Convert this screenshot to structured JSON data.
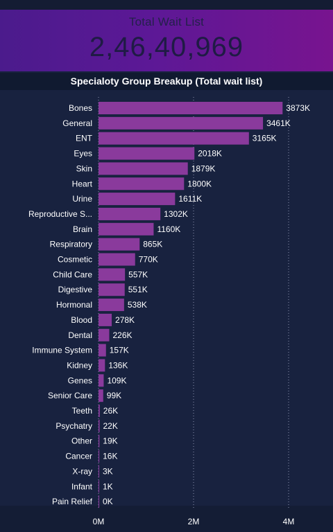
{
  "kpi": {
    "title": "Total Wait List",
    "value": "2,46,40,969"
  },
  "chart_data": {
    "type": "bar",
    "orientation": "horizontal",
    "title": "Specialoty Group Breakup (Total wait list)",
    "categories": [
      "Bones",
      "General",
      "ENT",
      "Eyes",
      "Skin",
      "Heart",
      "Urine",
      "Reproductive S...",
      "Brain",
      "Respiratory",
      "Cosmetic",
      "Child Care",
      "Digestive",
      "Hormonal",
      "Blood",
      "Dental",
      "Immune System",
      "Kidney",
      "Genes",
      "Senior Care",
      "Teeth",
      "Psychatry",
      "Other",
      "Cancer",
      "X-ray",
      "Infant",
      "Pain Relief"
    ],
    "values": [
      3873000,
      3461000,
      3165000,
      2018000,
      1879000,
      1800000,
      1611000,
      1302000,
      1160000,
      865000,
      770000,
      557000,
      551000,
      538000,
      278000,
      226000,
      157000,
      136000,
      109000,
      99000,
      26000,
      22000,
      19000,
      16000,
      3000,
      1000,
      0
    ],
    "value_labels": [
      "3873K",
      "3461K",
      "3165K",
      "2018K",
      "1879K",
      "1800K",
      "1611K",
      "1302K",
      "1160K",
      "865K",
      "770K",
      "557K",
      "551K",
      "538K",
      "278K",
      "226K",
      "157K",
      "136K",
      "109K",
      "99K",
      "26K",
      "22K",
      "19K",
      "16K",
      "3K",
      "1K",
      "0K"
    ],
    "x_ticks": [
      0,
      2000000,
      4000000
    ],
    "x_tick_labels": [
      "0M",
      "2M",
      "4M"
    ],
    "xlim": [
      0,
      4000000
    ],
    "grid": "vertical dotted",
    "colors": {
      "bar": "#8a3a9c",
      "background": "#18223f",
      "text": "#ffffff"
    }
  }
}
